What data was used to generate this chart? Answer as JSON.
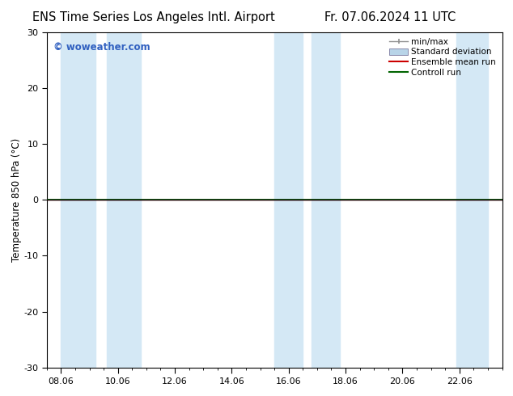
{
  "title_left": "ENS Time Series Los Angeles Intl. Airport",
  "title_right": "Fr. 07.06.2024 11 UTC",
  "ylabel": "Temperature 850 hPa (°C)",
  "watermark": "© woweather.com",
  "ylim": [
    -30,
    30
  ],
  "yticks": [
    -30,
    -20,
    -10,
    0,
    10,
    20,
    30
  ],
  "xtick_labels": [
    "08.06",
    "10.06",
    "12.06",
    "14.06",
    "16.06",
    "18.06",
    "20.06",
    "22.06"
  ],
  "xtick_positions": [
    0,
    2,
    4,
    6,
    8,
    10,
    12,
    14
  ],
  "xlim_start": -0.3,
  "xlim_end": 15.0,
  "shaded_regions": [
    [
      0.0,
      1.2
    ],
    [
      1.6,
      2.8
    ],
    [
      7.5,
      8.5
    ],
    [
      8.8,
      9.8
    ],
    [
      13.9,
      15.0
    ]
  ],
  "band_color": "#d4e8f5",
  "zero_line_color": "#000000",
  "control_run_color": "#006400",
  "ensemble_mean_color": "#cc0000",
  "bg_color": "#ffffff",
  "plot_bg_color": "#ffffff",
  "watermark_color": "#3060c0",
  "legend_labels": [
    "min/max",
    "Standard deviation",
    "Ensemble mean run",
    "Controll run"
  ],
  "minmax_color": "#909090",
  "std_color": "#b8d4e8",
  "title_fontsize": 10.5,
  "axis_fontsize": 8.5,
  "tick_fontsize": 8,
  "legend_fontsize": 7.5
}
